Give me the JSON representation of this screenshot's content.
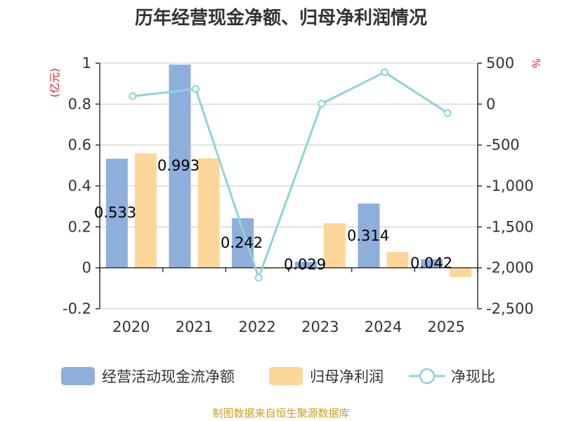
{
  "chart_data": {
    "type": "bar",
    "title": "历年经营现金净额、归母净利润情况",
    "categories": [
      "2020",
      "2021",
      "2022",
      "2023",
      "2024",
      "2025"
    ],
    "left_axis": {
      "unit": "(亿元)",
      "ylim": [
        -0.2,
        1
      ],
      "ticks": [
        1,
        0.8,
        0.6,
        0.4,
        0.2,
        0,
        -0.2
      ],
      "tick_labels": [
        "1",
        "0.8",
        "0.6",
        "0.4",
        "0.2",
        "0",
        "-0.2"
      ]
    },
    "right_axis": {
      "unit": "%",
      "ylim": [
        -2500,
        500
      ],
      "ticks": [
        500,
        0,
        -500,
        -1000,
        -1500,
        -2000,
        -2500
      ],
      "tick_labels": [
        "500",
        "0",
        "-500",
        "-1,000",
        "-1,500",
        "-2,000",
        "-2,500"
      ]
    },
    "series": [
      {
        "name": "经营活动现金流净额",
        "type": "bar",
        "axis": "left",
        "color": "#8eaedb",
        "values": [
          0.533,
          0.993,
          0.242,
          0.029,
          0.314,
          0.042
        ],
        "labels": [
          "0.533",
          "0.993",
          "0.242",
          "0.029",
          "0.314",
          "0.042"
        ]
      },
      {
        "name": "归母净利润",
        "type": "bar",
        "axis": "left",
        "color": "#fdd79a",
        "values": [
          0.56,
          0.535,
          -0.005,
          0.218,
          0.078,
          -0.045
        ]
      },
      {
        "name": "净现比",
        "type": "line",
        "axis": "right",
        "color": "#8ed4d8",
        "values": [
          95,
          185,
          -2120,
          5,
          390,
          -110
        ]
      }
    ],
    "source": "制图数据来自恒生聚源数据库"
  }
}
